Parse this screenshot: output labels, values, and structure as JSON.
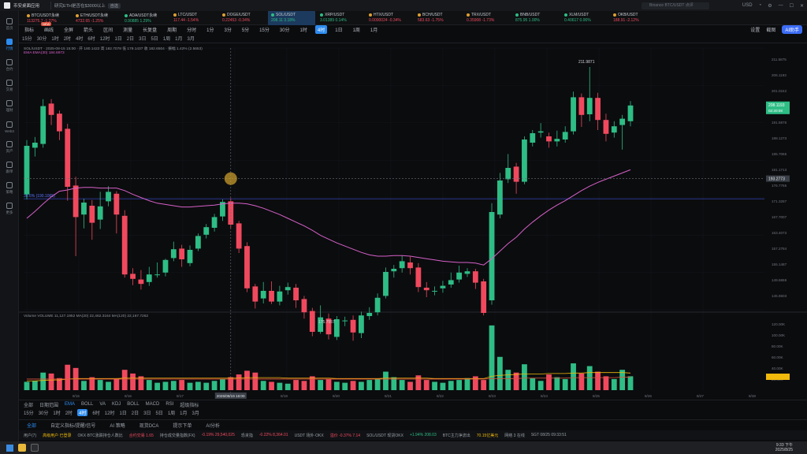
{
  "app": {
    "title": "币安桌面应用",
    "browser_tab": "研究ETH是否在$3000以上",
    "tab_badge": "自选",
    "search_placeholder": "Binance BTC/USDT 点评",
    "currency": "USD"
  },
  "sidebar": [
    {
      "label": "首页"
    },
    {
      "label": "行情"
    },
    {
      "label": "合约"
    },
    {
      "label": "交易"
    },
    {
      "label": "理财"
    },
    {
      "label": "Web3"
    },
    {
      "label": "资产"
    },
    {
      "label": "跟单"
    },
    {
      "label": "策略"
    },
    {
      "label": "更多"
    }
  ],
  "tickers": [
    {
      "name": "BTC/USDT永续",
      "value": "113275.7 -1.27%",
      "dir": "down"
    },
    {
      "name": "ETH/USDT永续",
      "value": "4732.65 -1.25%",
      "dir": "down"
    },
    {
      "name": "ADA/USDT永续",
      "value": "0.90885 1.29%",
      "dir": "up"
    },
    {
      "name": "LTC/USDT",
      "value": "117.44 -1.54%",
      "dir": "down"
    },
    {
      "name": "DOGE/USDT",
      "value": "0.22453 -0.34%",
      "dir": "down"
    },
    {
      "name": "SOL/USDT",
      "value": "208.11 3.18%",
      "dir": "up",
      "active": true
    },
    {
      "name": "XRP/USDT",
      "value": "3.01389 0.14%",
      "dir": "up"
    },
    {
      "name": "HTX/USDT",
      "value": "0.0000024 -0.34%",
      "dir": "down"
    },
    {
      "name": "BCH/USDT",
      "value": "583.63 -1.75%",
      "dir": "down"
    },
    {
      "name": "TRX/USDT",
      "value": "0.35908 -1.73%",
      "dir": "down"
    },
    {
      "name": "BNB/USDT",
      "value": "875.95 1.00%",
      "dir": "up"
    },
    {
      "name": "XLM/USDT",
      "value": "0.40617 0.06%",
      "dir": "up"
    },
    {
      "name": "OKB/USDT",
      "value": "188.91 -2.12%",
      "dir": "down"
    }
  ],
  "toolbar1": [
    "指标",
    "画线",
    "全屏",
    "箭头",
    "区间",
    "测量",
    "长复盘",
    "周期",
    "分时",
    "1分",
    "3分",
    "5分",
    "15分",
    "30分",
    "1时",
    "4时",
    "1日",
    "1周",
    "1月"
  ],
  "toolbar1_badge": "NEW",
  "toolbar1_right": [
    "设置",
    "截图",
    "AI助手"
  ],
  "toolbar2": [
    "15分",
    "30分",
    "1时",
    "2时",
    "4时",
    "6时",
    "12时",
    "1日",
    "2日",
    "3日",
    "5日",
    "1周",
    "1月",
    "3月"
  ],
  "legend": {
    "pair": "SOL/USDT · 2025-08-15 15:00 · 开 180.1422 高 182.7078 低 179.1437 收 182.6504 · 振幅 1.42% (2.5653)",
    "ma": "EMA  EMA(30) 184.6973",
    "info": "成交额 2.63%"
  },
  "price_axis": [
    "211.5875",
    "206.1193",
    "201.0242",
    "197.3472",
    "191.5876",
    "188.1273",
    "185.7065",
    "181.1713",
    "176.7765",
    "171.3287",
    "167.7007",
    "163.4073",
    "157.2784",
    "155.1487",
    "149.6869",
    "145.6503"
  ],
  "price_tags": {
    "current": "208.1193",
    "countdown": "02:20:08",
    "crosshair": "193.2773",
    "line_label": "30.6% (190.1065)"
  },
  "chart_marks": {
    "high": "211.9871",
    "low": "175.7557"
  },
  "volume": {
    "legend": "Volume  VOLUME 11,127.1952  MA(20) 22,462.3164  MA(120) 22,167.7262",
    "axis": [
      "120.00K",
      "100.00K",
      "80.00K",
      "60.00K",
      "40.00K",
      "20.00K"
    ]
  },
  "time_axis": [
    "8/15",
    "8/16",
    "8/17",
    "8/18",
    "8/19",
    "8/20",
    "8/21",
    "8/22",
    "8/23",
    "8/24",
    "8/25",
    "8/26",
    "8/27",
    "8/28"
  ],
  "crosshair_time": "2025/08/19 16:00",
  "ind_tabs": {
    "left": [
      "全部",
      "日期范围"
    ],
    "items": [
      "EMA",
      "BOLL",
      "VA",
      "KDJ",
      "BOLL",
      "MACD",
      "RSI",
      "超级指标"
    ],
    "selected": "EMA"
  },
  "ind_periods": {
    "items": [
      "15分",
      "30分",
      "1时",
      "2时",
      "4时",
      "6时",
      "12时",
      "1日",
      "2日",
      "3日",
      "5日",
      "1周",
      "1月",
      "3月"
    ],
    "selected": "4时"
  },
  "bottom_tabs": {
    "items": [
      "全部",
      "自定义指标/提醒/信号",
      "AI 策略",
      "现货DCA",
      "提示下单",
      "AI分析"
    ],
    "selected": "全部"
  },
  "status": [
    {
      "t": "用户(7)",
      "c": ""
    },
    {
      "t": "高级用户 已登录",
      "c": "y"
    },
    {
      "t": "OKX·BTC涨跌持仓人数比",
      "c": ""
    },
    {
      "t": "合约交易 1.65",
      "c": "r"
    },
    {
      "t": "持仓成交量指数(FX)",
      "c": ""
    },
    {
      "t": "-0.19% 29,540,025",
      "c": "r"
    },
    {
      "t": "恐贪指",
      "c": ""
    },
    {
      "t": "-0.22% 8,364.01",
      "c": "r"
    },
    {
      "t": "USDT 场外·OKX",
      "c": ""
    },
    {
      "t": "溢价 -0.37% 7.14",
      "c": "r"
    },
    {
      "t": "SOL/USDT 现货OKX",
      "c": ""
    },
    {
      "t": "+1.94% 208.03",
      "c": "g"
    },
    {
      "t": "BTC主力净流出",
      "c": ""
    },
    {
      "t": "70.15亿美元",
      "c": "y"
    },
    {
      "t": "网络 3 在线",
      "c": ""
    },
    {
      "t": "SGT 08/25 09:33:51",
      "c": ""
    }
  ],
  "taskbar": {
    "time": "9:33 下午",
    "date": "2025/8/25"
  },
  "chart_data": {
    "type": "candlestick",
    "title": "SOL/USDT 4H",
    "ylim": [
      172.5,
      214.0
    ],
    "candles": [
      {
        "o": 190.8,
        "c": 198.5,
        "h": 199.4,
        "l": 190.0
      },
      {
        "o": 198.2,
        "c": 199.0,
        "h": 199.9,
        "l": 196.8
      },
      {
        "o": 198.8,
        "c": 204.8,
        "h": 205.9,
        "l": 198.2
      },
      {
        "o": 205.2,
        "c": 203.4,
        "h": 205.9,
        "l": 201.8
      },
      {
        "o": 203.6,
        "c": 200.8,
        "h": 204.1,
        "l": 199.4
      },
      {
        "o": 201.2,
        "c": 192.0,
        "h": 202.0,
        "l": 189.8
      },
      {
        "o": 192.2,
        "c": 187.2,
        "h": 193.6,
        "l": 181.0
      },
      {
        "o": 187.6,
        "c": 189.5,
        "h": 190.1,
        "l": 185.4
      },
      {
        "o": 189.0,
        "c": 186.3,
        "h": 189.9,
        "l": 183.6
      },
      {
        "o": 186.8,
        "c": 188.9,
        "h": 191.2,
        "l": 185.3
      },
      {
        "o": 189.7,
        "c": 191.2,
        "h": 192.1,
        "l": 188.9
      },
      {
        "o": 190.9,
        "c": 187.6,
        "h": 191.3,
        "l": 184.6
      },
      {
        "o": 187.4,
        "c": 178.1,
        "h": 188.3,
        "l": 177.6
      },
      {
        "o": 178.2,
        "c": 177.4,
        "h": 179.1,
        "l": 176.4
      },
      {
        "o": 177.3,
        "c": 176.6,
        "h": 178.8,
        "l": 175.7
      },
      {
        "o": 176.9,
        "c": 178.1,
        "h": 179.3,
        "l": 176.3
      },
      {
        "o": 178.0,
        "c": 178.1,
        "h": 180.0,
        "l": 177.6
      },
      {
        "o": 178.4,
        "c": 180.4,
        "h": 180.6,
        "l": 177.8
      },
      {
        "o": 180.7,
        "c": 182.1,
        "h": 183.3,
        "l": 180.2
      },
      {
        "o": 182.2,
        "c": 180.5,
        "h": 182.8,
        "l": 179.3
      },
      {
        "o": 179.9,
        "c": 182.0,
        "h": 182.7,
        "l": 179.4
      },
      {
        "o": 182.2,
        "c": 184.2,
        "h": 184.6,
        "l": 181.8
      },
      {
        "o": 184.4,
        "c": 185.6,
        "h": 186.1,
        "l": 183.8
      },
      {
        "o": 185.5,
        "c": 187.2,
        "h": 187.7,
        "l": 184.9
      },
      {
        "o": 187.3,
        "c": 189.6,
        "h": 190.0,
        "l": 186.6
      },
      {
        "o": 189.7,
        "c": 186.0,
        "h": 190.2,
        "l": 185.4
      },
      {
        "o": 186.2,
        "c": 182.2,
        "h": 186.6,
        "l": 181.5
      },
      {
        "o": 182.6,
        "c": 175.9,
        "h": 183.2,
        "l": 175.3
      },
      {
        "o": 176.2,
        "c": 173.8,
        "h": 176.6,
        "l": 172.7
      },
      {
        "o": 174.3,
        "c": 175.5,
        "h": 176.9,
        "l": 173.5
      },
      {
        "o": 175.5,
        "c": 173.8,
        "h": 177.0,
        "l": 173.4
      },
      {
        "o": 173.8,
        "c": 175.4,
        "h": 176.3,
        "l": 173.2
      },
      {
        "o": 175.6,
        "c": 176.1,
        "h": 176.8,
        "l": 174.9
      },
      {
        "o": 176.0,
        "c": 174.0,
        "h": 176.6,
        "l": 172.8
      },
      {
        "o": 174.2,
        "c": 172.1,
        "h": 174.7,
        "l": 171.1
      },
      {
        "o": 172.3,
        "c": 169.0,
        "h": 172.8,
        "l": 168.3
      },
      {
        "o": 169.0,
        "c": 171.3,
        "h": 173.2,
        "l": 168.7
      },
      {
        "o": 171.1,
        "c": 168.6,
        "h": 171.9,
        "l": 167.8
      },
      {
        "o": 168.2,
        "c": 171.0,
        "h": 171.5,
        "l": 167.7
      },
      {
        "o": 170.8,
        "c": 170.8,
        "h": 171.4,
        "l": 169.9
      },
      {
        "o": 170.9,
        "c": 168.9,
        "h": 171.6,
        "l": 167.6
      },
      {
        "o": 168.8,
        "c": 171.6,
        "h": 172.2,
        "l": 168.0
      },
      {
        "o": 171.5,
        "c": 172.0,
        "h": 172.9,
        "l": 170.9
      },
      {
        "o": 172.1,
        "c": 174.4,
        "h": 175.1,
        "l": 171.6
      },
      {
        "o": 174.7,
        "c": 178.5,
        "h": 179.2,
        "l": 174.3
      },
      {
        "o": 178.6,
        "c": 179.0,
        "h": 179.6,
        "l": 177.6
      },
      {
        "o": 179.1,
        "c": 180.2,
        "h": 181.1,
        "l": 178.4
      },
      {
        "o": 180.0,
        "c": 179.1,
        "h": 180.9,
        "l": 178.1
      },
      {
        "o": 179.2,
        "c": 176.1,
        "h": 179.9,
        "l": 175.3
      },
      {
        "o": 176.0,
        "c": 175.6,
        "h": 176.9,
        "l": 174.5
      },
      {
        "o": 175.5,
        "c": 175.5,
        "h": 176.2,
        "l": 174.8
      },
      {
        "o": 175.9,
        "c": 176.3,
        "h": 177.1,
        "l": 175.2
      },
      {
        "o": 176.5,
        "c": 177.2,
        "h": 178.4,
        "l": 176.0
      },
      {
        "o": 177.3,
        "c": 178.4,
        "h": 179.5,
        "l": 176.8
      },
      {
        "o": 178.2,
        "c": 178.6,
        "h": 179.1,
        "l": 177.7
      },
      {
        "o": 178.6,
        "c": 176.8,
        "h": 179.0,
        "l": 175.8
      },
      {
        "o": 177.0,
        "c": 172.0,
        "h": 177.4,
        "l": 171.6
      },
      {
        "o": 174.0,
        "c": 188.0,
        "h": 189.4,
        "l": 173.3
      },
      {
        "o": 187.6,
        "c": 193.0,
        "h": 194.2,
        "l": 187.0
      },
      {
        "o": 193.2,
        "c": 195.0,
        "h": 197.2,
        "l": 192.6
      },
      {
        "o": 195.2,
        "c": 192.8,
        "h": 195.8,
        "l": 190.9
      },
      {
        "o": 192.8,
        "c": 199.5,
        "h": 200.0,
        "l": 192.4
      },
      {
        "o": 199.0,
        "c": 200.5,
        "h": 201.0,
        "l": 198.4
      },
      {
        "o": 200.6,
        "c": 200.8,
        "h": 202.1,
        "l": 199.8
      },
      {
        "o": 200.0,
        "c": 199.2,
        "h": 200.6,
        "l": 198.2
      },
      {
        "o": 199.2,
        "c": 199.6,
        "h": 200.9,
        "l": 198.4
      },
      {
        "o": 199.5,
        "c": 200.7,
        "h": 201.6,
        "l": 199.0
      },
      {
        "o": 200.8,
        "c": 206.2,
        "h": 207.1,
        "l": 200.3
      },
      {
        "o": 206.2,
        "c": 203.4,
        "h": 206.8,
        "l": 201.5
      },
      {
        "o": 203.5,
        "c": 206.1,
        "h": 211.0,
        "l": 202.4
      },
      {
        "o": 206.1,
        "c": 202.6,
        "h": 206.9,
        "l": 201.0
      },
      {
        "o": 202.6,
        "c": 200.4,
        "h": 203.6,
        "l": 199.2
      },
      {
        "o": 200.6,
        "c": 201.6,
        "h": 202.4,
        "l": 199.8
      },
      {
        "o": 201.8,
        "c": 202.8,
        "h": 203.4,
        "l": 197.9
      },
      {
        "o": 202.4,
        "c": 204.9,
        "h": 205.6,
        "l": 201.6
      }
    ],
    "ema": [
      187.0,
      188.1,
      189.3,
      190.4,
      191.3,
      191.5,
      191.8,
      191.9,
      191.9,
      191.8,
      191.8,
      191.8,
      191.4,
      190.8,
      190.3,
      189.8,
      189.4,
      189.2,
      189.0,
      188.8,
      188.8,
      188.9,
      189.0,
      189.1,
      189.3,
      189.4,
      189.4,
      189.3,
      189.0,
      188.6,
      188.1,
      187.6,
      187.0,
      186.4,
      185.8,
      185.1,
      184.3,
      183.7,
      183.1,
      182.6,
      182.1,
      181.6,
      181.2,
      181.0,
      181.0,
      181.1,
      181.1,
      181.0,
      180.8,
      180.6,
      180.4,
      180.2,
      180.1,
      180.0,
      180.0,
      179.9,
      179.6,
      180.6,
      181.8,
      183.0,
      184.0,
      185.3,
      186.4,
      187.4,
      188.3,
      189.1,
      189.8,
      190.6,
      191.4,
      192.1,
      192.7,
      193.2,
      193.7,
      194.2,
      194.7
    ],
    "volume": [
      18,
      20,
      38,
      36,
      26,
      55,
      48,
      20,
      28,
      22,
      18,
      24,
      44,
      36,
      30,
      22,
      16,
      18,
      20,
      22,
      16,
      18,
      16,
      20,
      24,
      28,
      34,
      42,
      38,
      20,
      18,
      16,
      14,
      22,
      20,
      30,
      22,
      24,
      18,
      16,
      20,
      18,
      22,
      24,
      40,
      28,
      22,
      18,
      32,
      22,
      18,
      16,
      20,
      22,
      26,
      30,
      22,
      140,
      72,
      44,
      38,
      56,
      26,
      20,
      34,
      28,
      24,
      58,
      36,
      52,
      40,
      30,
      24,
      44,
      30
    ],
    "vol_ma20": [
      20,
      20,
      21,
      22,
      22,
      24,
      25,
      25,
      25,
      25,
      25,
      25,
      26,
      26,
      26,
      26,
      26,
      26,
      26,
      26,
      26,
      26,
      26,
      26,
      26,
      26,
      26,
      27,
      27,
      27,
      27,
      27,
      26,
      26,
      26,
      26,
      26,
      26,
      25,
      25,
      25,
      25,
      25,
      25,
      26,
      26,
      26,
      26,
      26,
      26,
      25,
      25,
      25,
      25,
      25,
      25,
      25,
      30,
      32,
      33,
      34,
      35,
      35,
      35,
      36,
      36,
      36,
      37,
      37,
      38,
      38,
      38,
      38,
      38,
      37
    ],
    "vol_ma120": [
      24,
      24,
      24,
      24,
      24,
      24,
      24,
      24,
      24,
      24,
      24,
      24,
      24,
      24,
      24,
      24,
      24,
      24,
      24,
      24,
      24,
      24,
      24,
      24,
      24,
      24,
      24,
      24,
      24,
      24,
      24,
      24,
      24,
      24,
      24,
      24,
      24,
      24,
      24,
      24,
      24,
      24,
      24,
      24,
      24,
      24,
      24,
      24,
      24,
      24,
      24,
      24,
      24,
      24,
      24,
      24,
      24,
      25,
      25,
      25,
      25,
      26,
      26,
      26,
      26,
      26,
      26,
      27,
      27,
      27,
      27,
      27,
      27,
      28,
      28
    ]
  }
}
